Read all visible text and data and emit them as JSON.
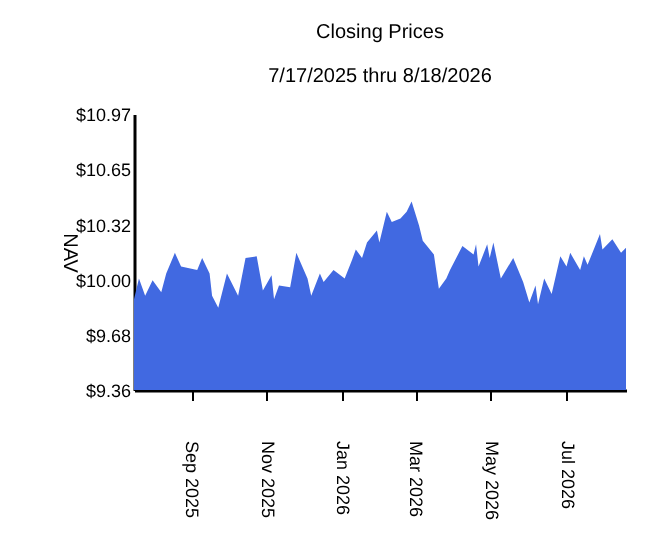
{
  "chart_data": {
    "type": "area",
    "title": "Closing Prices",
    "subtitle": "7/17/2025 thru 8/18/2026",
    "ylabel": "NAV",
    "x": [
      "2025-07-17",
      "2025-07-21",
      "2025-07-26",
      "2025-08-01",
      "2025-08-08",
      "2025-08-12",
      "2025-08-19",
      "2025-08-24",
      "2025-09-06",
      "2025-09-10",
      "2025-09-16",
      "2025-09-18",
      "2025-09-23",
      "2025-09-30",
      "2025-10-09",
      "2025-10-15",
      "2025-10-24",
      "2025-10-29",
      "2025-11-05",
      "2025-11-07",
      "2025-11-11",
      "2025-11-20",
      "2025-11-25",
      "2025-12-04",
      "2025-12-07",
      "2025-12-14",
      "2025-12-17",
      "2025-12-25",
      "2026-01-03",
      "2026-01-09",
      "2026-01-12",
      "2026-01-17",
      "2026-01-21",
      "2026-01-29",
      "2026-01-31",
      "2026-02-06",
      "2026-02-10",
      "2026-02-17",
      "2026-02-22",
      "2026-02-26",
      "2026-03-04",
      "2026-03-07",
      "2026-03-16",
      "2026-03-20",
      "2026-03-26",
      "2026-03-29",
      "2026-04-08",
      "2026-04-17",
      "2026-04-19",
      "2026-04-21",
      "2026-04-28",
      "2026-04-30",
      "2026-05-03",
      "2026-05-09",
      "2026-05-19",
      "2026-05-27",
      "2026-06-01",
      "2026-06-06",
      "2026-06-08",
      "2026-06-13",
      "2026-06-19",
      "2026-06-26",
      "2026-07-01",
      "2026-07-04",
      "2026-07-12",
      "2026-07-15",
      "2026-07-18",
      "2026-07-28",
      "2026-07-30",
      "2026-08-07",
      "2026-08-14",
      "2026-08-18"
    ],
    "series": [
      {
        "color": "#4169e1",
        "values": [
          9.89,
          10.01,
          9.91,
          10.0,
          9.93,
          10.04,
          10.16,
          10.08,
          10.06,
          10.13,
          10.04,
          9.91,
          9.84,
          10.04,
          9.91,
          10.13,
          10.14,
          9.94,
          10.03,
          9.89,
          9.97,
          9.96,
          10.16,
          10.01,
          9.91,
          10.04,
          9.99,
          10.06,
          10.01,
          10.12,
          10.18,
          10.13,
          10.22,
          10.29,
          10.22,
          10.4,
          10.34,
          10.36,
          10.4,
          10.46,
          10.32,
          10.23,
          10.15,
          9.95,
          10.01,
          10.06,
          10.2,
          10.15,
          10.21,
          10.08,
          10.21,
          10.13,
          10.22,
          10.01,
          10.13,
          9.99,
          9.87,
          9.97,
          9.86,
          10.01,
          9.92,
          10.14,
          10.08,
          10.16,
          10.06,
          10.14,
          10.09,
          10.27,
          10.18,
          10.24,
          10.16,
          10.19
        ]
      }
    ],
    "xlim": [
      "2025-07-17",
      "2026-08-18"
    ],
    "xticks": [
      {
        "value": "2025-09-01",
        "label": "Sep 2025"
      },
      {
        "value": "2025-11-01",
        "label": "Nov 2025"
      },
      {
        "value": "2026-01-01",
        "label": "Jan 2026"
      },
      {
        "value": "2026-03-01",
        "label": "Mar 2026"
      },
      {
        "value": "2026-05-01",
        "label": "May 2026"
      },
      {
        "value": "2026-07-01",
        "label": "Jul 2026"
      }
    ],
    "ylim": [
      9.36,
      10.97
    ],
    "yticks": [
      {
        "value": 9.36,
        "label": "$9.36"
      },
      {
        "value": 9.68,
        "label": "$9.68"
      },
      {
        "value": 10.0,
        "label": "$10.00"
      },
      {
        "value": 10.32,
        "label": "$10.32"
      },
      {
        "value": 10.65,
        "label": "$10.65"
      },
      {
        "value": 10.97,
        "label": "$10.97"
      }
    ],
    "grid": false
  }
}
